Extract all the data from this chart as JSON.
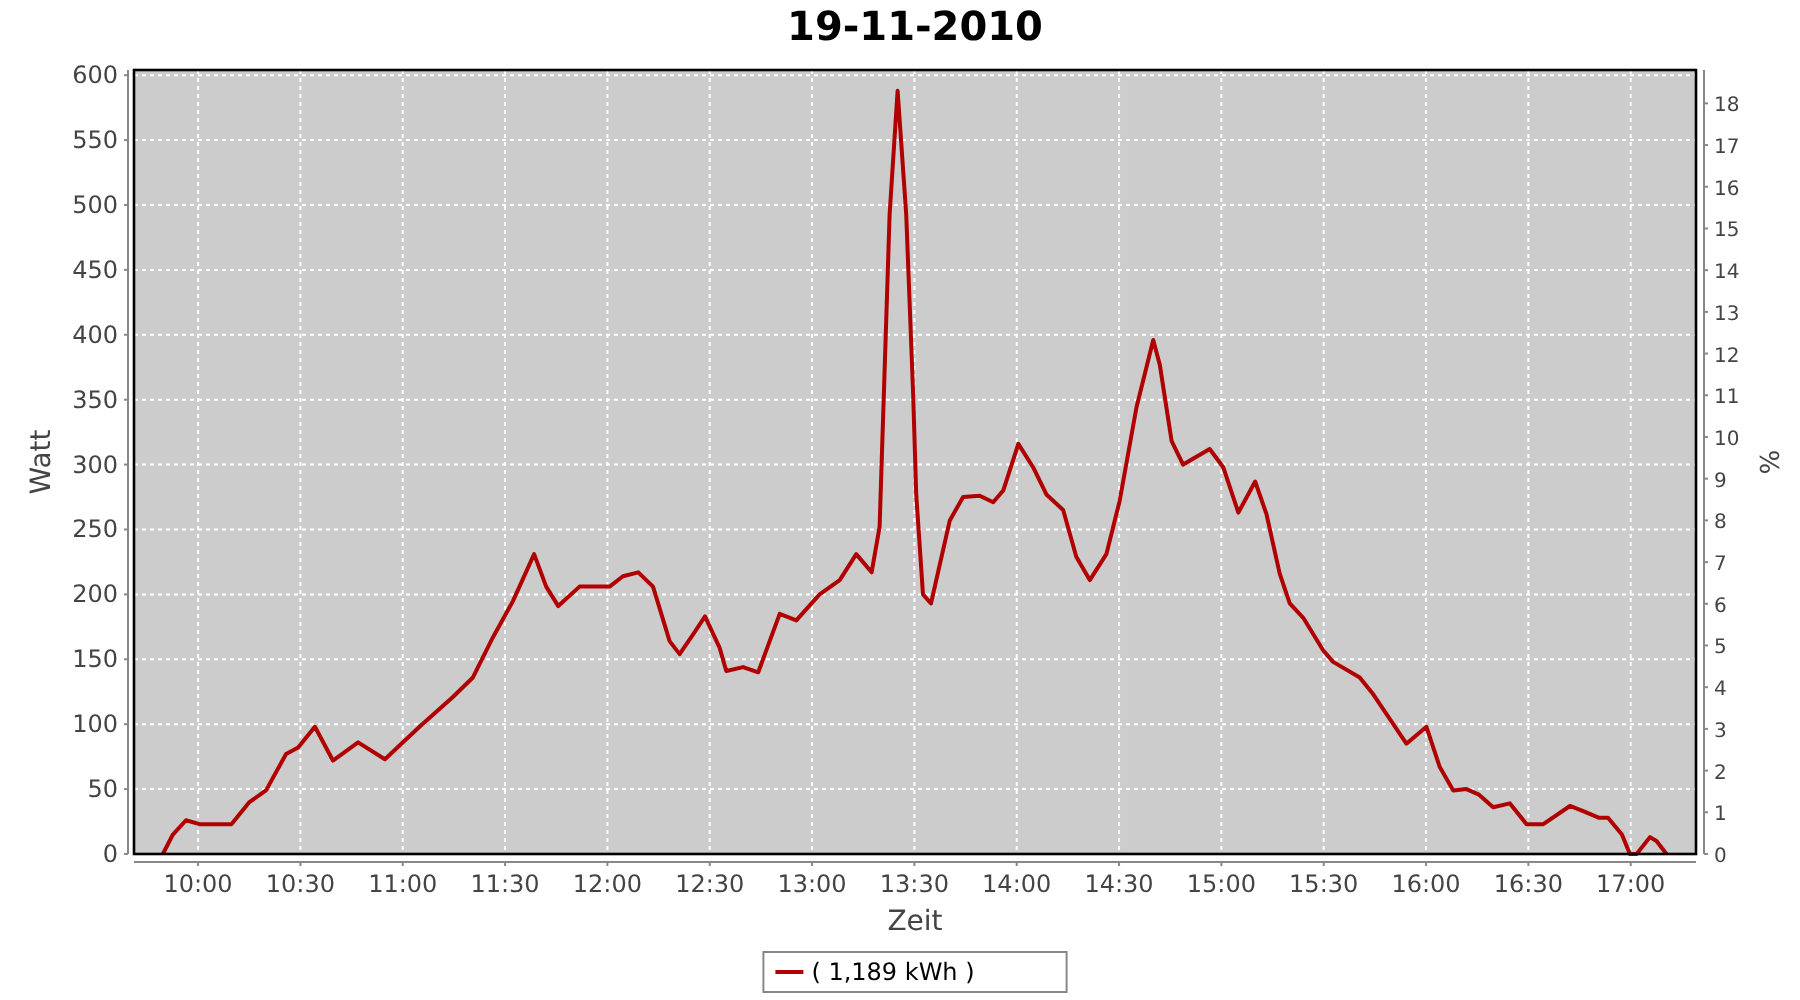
{
  "chart_data": {
    "type": "line",
    "title": "19-11-2010",
    "xlabel": "Zeit",
    "ylabel": "Watt",
    "y2label": "%",
    "xlim": [
      9.687,
      17.319
    ],
    "ylim": [
      0,
      604
    ],
    "y2lim": [
      0,
      18.8
    ],
    "xticks": [
      {
        "value": 10,
        "label": "10:00"
      },
      {
        "value": 10.5,
        "label": "10:30"
      },
      {
        "value": 11,
        "label": "11:00"
      },
      {
        "value": 11.5,
        "label": "11:30"
      },
      {
        "value": 12,
        "label": "12:00"
      },
      {
        "value": 12.5,
        "label": "12:30"
      },
      {
        "value": 13,
        "label": "13:00"
      },
      {
        "value": 13.5,
        "label": "13:30"
      },
      {
        "value": 14,
        "label": "14:00"
      },
      {
        "value": 14.5,
        "label": "14:30"
      },
      {
        "value": 15,
        "label": "15:00"
      },
      {
        "value": 15.5,
        "label": "15:30"
      },
      {
        "value": 16,
        "label": "16:00"
      },
      {
        "value": 16.5,
        "label": "16:30"
      },
      {
        "value": 17,
        "label": "17:00"
      }
    ],
    "yticks": [
      0,
      50,
      100,
      150,
      200,
      250,
      300,
      350,
      400,
      450,
      500,
      550,
      600
    ],
    "y2ticks": [
      0,
      1,
      2,
      3,
      4,
      5,
      6,
      7,
      8,
      9,
      10,
      11,
      12,
      13,
      14,
      15,
      16,
      17,
      18
    ],
    "grid": true,
    "legend": "bottom",
    "marker": "none",
    "line_style": "solid",
    "series": [
      {
        "name": "( 1,189 kWh )",
        "color": "#b00000",
        "x": [
          9.828,
          9.877,
          9.941,
          10.007,
          10.163,
          10.251,
          10.332,
          10.43,
          10.489,
          10.571,
          10.659,
          10.782,
          10.913,
          11.082,
          11.245,
          11.343,
          11.441,
          11.539,
          11.642,
          11.701,
          11.76,
          11.864,
          12.011,
          12.076,
          12.151,
          12.223,
          12.304,
          12.353,
          12.418,
          12.477,
          12.548,
          12.581,
          12.663,
          12.737,
          12.842,
          12.923,
          13.037,
          13.135,
          13.216,
          13.291,
          13.33,
          13.379,
          13.418,
          13.46,
          13.494,
          13.509,
          13.542,
          13.581,
          13.673,
          13.738,
          13.819,
          13.885,
          13.934,
          14.008,
          14.08,
          14.145,
          14.227,
          14.291,
          14.357,
          14.438,
          14.503,
          14.585,
          14.667,
          14.699,
          14.757,
          14.813,
          14.943,
          15.009,
          15.083,
          15.165,
          15.22,
          15.285,
          15.334,
          15.4,
          15.497,
          15.546,
          15.676,
          15.742,
          15.904,
          16.002,
          16.067,
          16.133,
          16.197,
          16.256,
          16.328,
          16.41,
          16.491,
          16.573,
          16.703,
          16.768,
          16.843,
          16.889,
          16.957,
          16.996,
          17.029,
          17.094,
          17.126,
          17.175
        ],
        "values": [
          0,
          15,
          26,
          23,
          23,
          40,
          49,
          77,
          82,
          98,
          72,
          86,
          73,
          98,
          121,
          136,
          167,
          195,
          231,
          206,
          191,
          206,
          206,
          214,
          217,
          206,
          164,
          154,
          169,
          183,
          159,
          141,
          144,
          140,
          185,
          180,
          200,
          211,
          231,
          217,
          252,
          493,
          588,
          493,
          354,
          277,
          200,
          193,
          257,
          275,
          276,
          271,
          280,
          316,
          298,
          277,
          265,
          229,
          211,
          231,
          272,
          344,
          396,
          377,
          318,
          300,
          312,
          298,
          263,
          287,
          262,
          216,
          193,
          182,
          157,
          148,
          136,
          123,
          85,
          98,
          67,
          49,
          50,
          46,
          36,
          39,
          23,
          23,
          37,
          33,
          28,
          28,
          15,
          0,
          0,
          13,
          10,
          0
        ]
      }
    ]
  }
}
